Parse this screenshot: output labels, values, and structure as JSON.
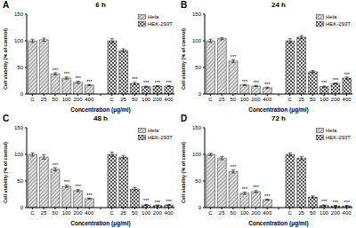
{
  "chart_data": [
    {
      "type": "bar",
      "panel_label": "A",
      "title": "6 h",
      "x_label": "Concentration (μg/ml)",
      "y_label": "Cell viability (% of control)",
      "categories": [
        "C",
        "25",
        "50",
        "100",
        "200",
        "400",
        null,
        "C",
        "25",
        "50",
        "100",
        "200",
        "400"
      ],
      "series": [
        {
          "name": "Hela",
          "color": "#7a7a7a",
          "values": [
            100,
            102,
            38,
            30,
            22,
            17,
            null,
            null,
            null,
            null,
            null,
            null,
            null
          ],
          "errors": [
            3,
            3,
            2,
            2,
            2,
            1,
            null,
            null,
            null,
            null,
            null,
            null,
            null
          ],
          "significance": [
            null,
            null,
            "***",
            "***",
            "***",
            "***",
            null,
            null,
            null,
            null,
            null,
            null,
            null
          ]
        },
        {
          "name": "HEK-293T",
          "color": "#555555",
          "values": [
            null,
            null,
            null,
            null,
            null,
            null,
            null,
            100,
            82,
            20,
            14,
            15,
            15
          ],
          "errors": [
            null,
            null,
            null,
            null,
            null,
            null,
            null,
            4,
            3,
            2,
            1,
            1,
            1
          ],
          "significance": [
            null,
            null,
            null,
            null,
            null,
            null,
            null,
            null,
            "***",
            "***",
            "***",
            "***",
            "***"
          ]
        }
      ],
      "ylim": [
        0,
        150
      ],
      "yticks": [
        0,
        50,
        100,
        150
      ],
      "grid": false,
      "legend": "upper right"
    },
    {
      "type": "bar",
      "panel_label": "B",
      "title": "24 h",
      "x_label": "Concentration (μg/ml)",
      "y_label": "Cell viability (% of control)",
      "categories": [
        "C",
        "25",
        "50",
        "100",
        "200",
        "400",
        null,
        "C",
        "25",
        "50",
        "100",
        "200",
        "400"
      ],
      "series": [
        {
          "name": "Hela",
          "color": "#7a7a7a",
          "values": [
            100,
            104,
            62,
            17,
            15,
            12,
            null,
            null,
            null,
            null,
            null,
            null,
            null
          ],
          "errors": [
            3,
            2,
            3,
            1,
            1,
            1,
            null,
            null,
            null,
            null,
            null,
            null,
            null
          ],
          "significance": [
            null,
            null,
            "***",
            "***",
            "***",
            "***",
            null,
            null,
            null,
            null,
            null,
            null,
            null
          ]
        },
        {
          "name": "HEK-293T",
          "color": "#555555",
          "values": [
            null,
            null,
            null,
            null,
            null,
            null,
            null,
            100,
            107,
            42,
            14,
            20,
            30
          ],
          "errors": [
            null,
            null,
            null,
            null,
            null,
            null,
            null,
            4,
            3,
            2,
            1,
            1,
            2
          ],
          "significance": [
            null,
            null,
            null,
            null,
            null,
            null,
            null,
            null,
            null,
            "***",
            "***",
            "***",
            "***"
          ]
        }
      ],
      "ylim": [
        0,
        150
      ],
      "yticks": [
        0,
        50,
        100,
        150
      ],
      "grid": false,
      "legend": "upper right"
    },
    {
      "type": "bar",
      "panel_label": "C",
      "title": "48 h",
      "x_label": "Concentration (μg/ml)",
      "y_label": "Cell viability (% of control)",
      "categories": [
        "C",
        "25",
        "50",
        "100",
        "200",
        "400",
        null,
        "C",
        "25",
        "50",
        "100",
        "200",
        "400"
      ],
      "series": [
        {
          "name": "Hela",
          "color": "#7a7a7a",
          "values": [
            100,
            95,
            72,
            40,
            32,
            17,
            null,
            null,
            null,
            null,
            null,
            null,
            null
          ],
          "errors": [
            3,
            4,
            3,
            2,
            2,
            1,
            null,
            null,
            null,
            null,
            null,
            null,
            null
          ],
          "significance": [
            null,
            null,
            "***",
            "***",
            "***",
            "***",
            null,
            null,
            null,
            null,
            null,
            null,
            null
          ]
        },
        {
          "name": "HEK-293T",
          "color": "#555555",
          "values": [
            null,
            null,
            null,
            null,
            null,
            null,
            null,
            100,
            95,
            35,
            5,
            4,
            5
          ],
          "errors": [
            null,
            null,
            null,
            null,
            null,
            null,
            null,
            4,
            3,
            3,
            1,
            1,
            1
          ],
          "significance": [
            null,
            null,
            null,
            null,
            null,
            null,
            null,
            null,
            null,
            "***",
            "***",
            "***",
            "***"
          ]
        }
      ],
      "ylim": [
        0,
        150
      ],
      "yticks": [
        0,
        50,
        100,
        150
      ],
      "grid": false,
      "legend": "upper right"
    },
    {
      "type": "bar",
      "panel_label": "D",
      "title": "72 h",
      "x_label": "Concentration (μg/ml)",
      "y_label": "Cell viability (% of control)",
      "categories": [
        "C",
        "25",
        "50",
        "100",
        "200",
        "400",
        null,
        "C",
        "25",
        "50",
        "100",
        "200",
        "400"
      ],
      "series": [
        {
          "name": "Hela",
          "color": "#7a7a7a",
          "values": [
            100,
            93,
            68,
            27,
            30,
            15,
            null,
            null,
            null,
            null,
            null,
            null,
            null
          ],
          "errors": [
            2,
            3,
            3,
            2,
            2,
            1,
            null,
            null,
            null,
            null,
            null,
            null,
            null
          ],
          "significance": [
            null,
            null,
            "***",
            "***",
            "***",
            "***",
            null,
            null,
            null,
            null,
            null,
            null,
            null
          ]
        },
        {
          "name": "HEK-293T",
          "color": "#555555",
          "values": [
            null,
            null,
            null,
            null,
            null,
            null,
            null,
            100,
            93,
            20,
            4,
            3,
            3
          ],
          "errors": [
            null,
            null,
            null,
            null,
            null,
            null,
            null,
            3,
            3,
            2,
            1,
            1,
            1
          ],
          "significance": [
            null,
            null,
            null,
            null,
            null,
            null,
            null,
            null,
            null,
            "***",
            "***",
            "***",
            "***"
          ]
        }
      ],
      "ylim": [
        0,
        150
      ],
      "yticks": [
        0,
        50,
        100,
        150
      ],
      "grid": false,
      "legend": "upper right"
    }
  ]
}
